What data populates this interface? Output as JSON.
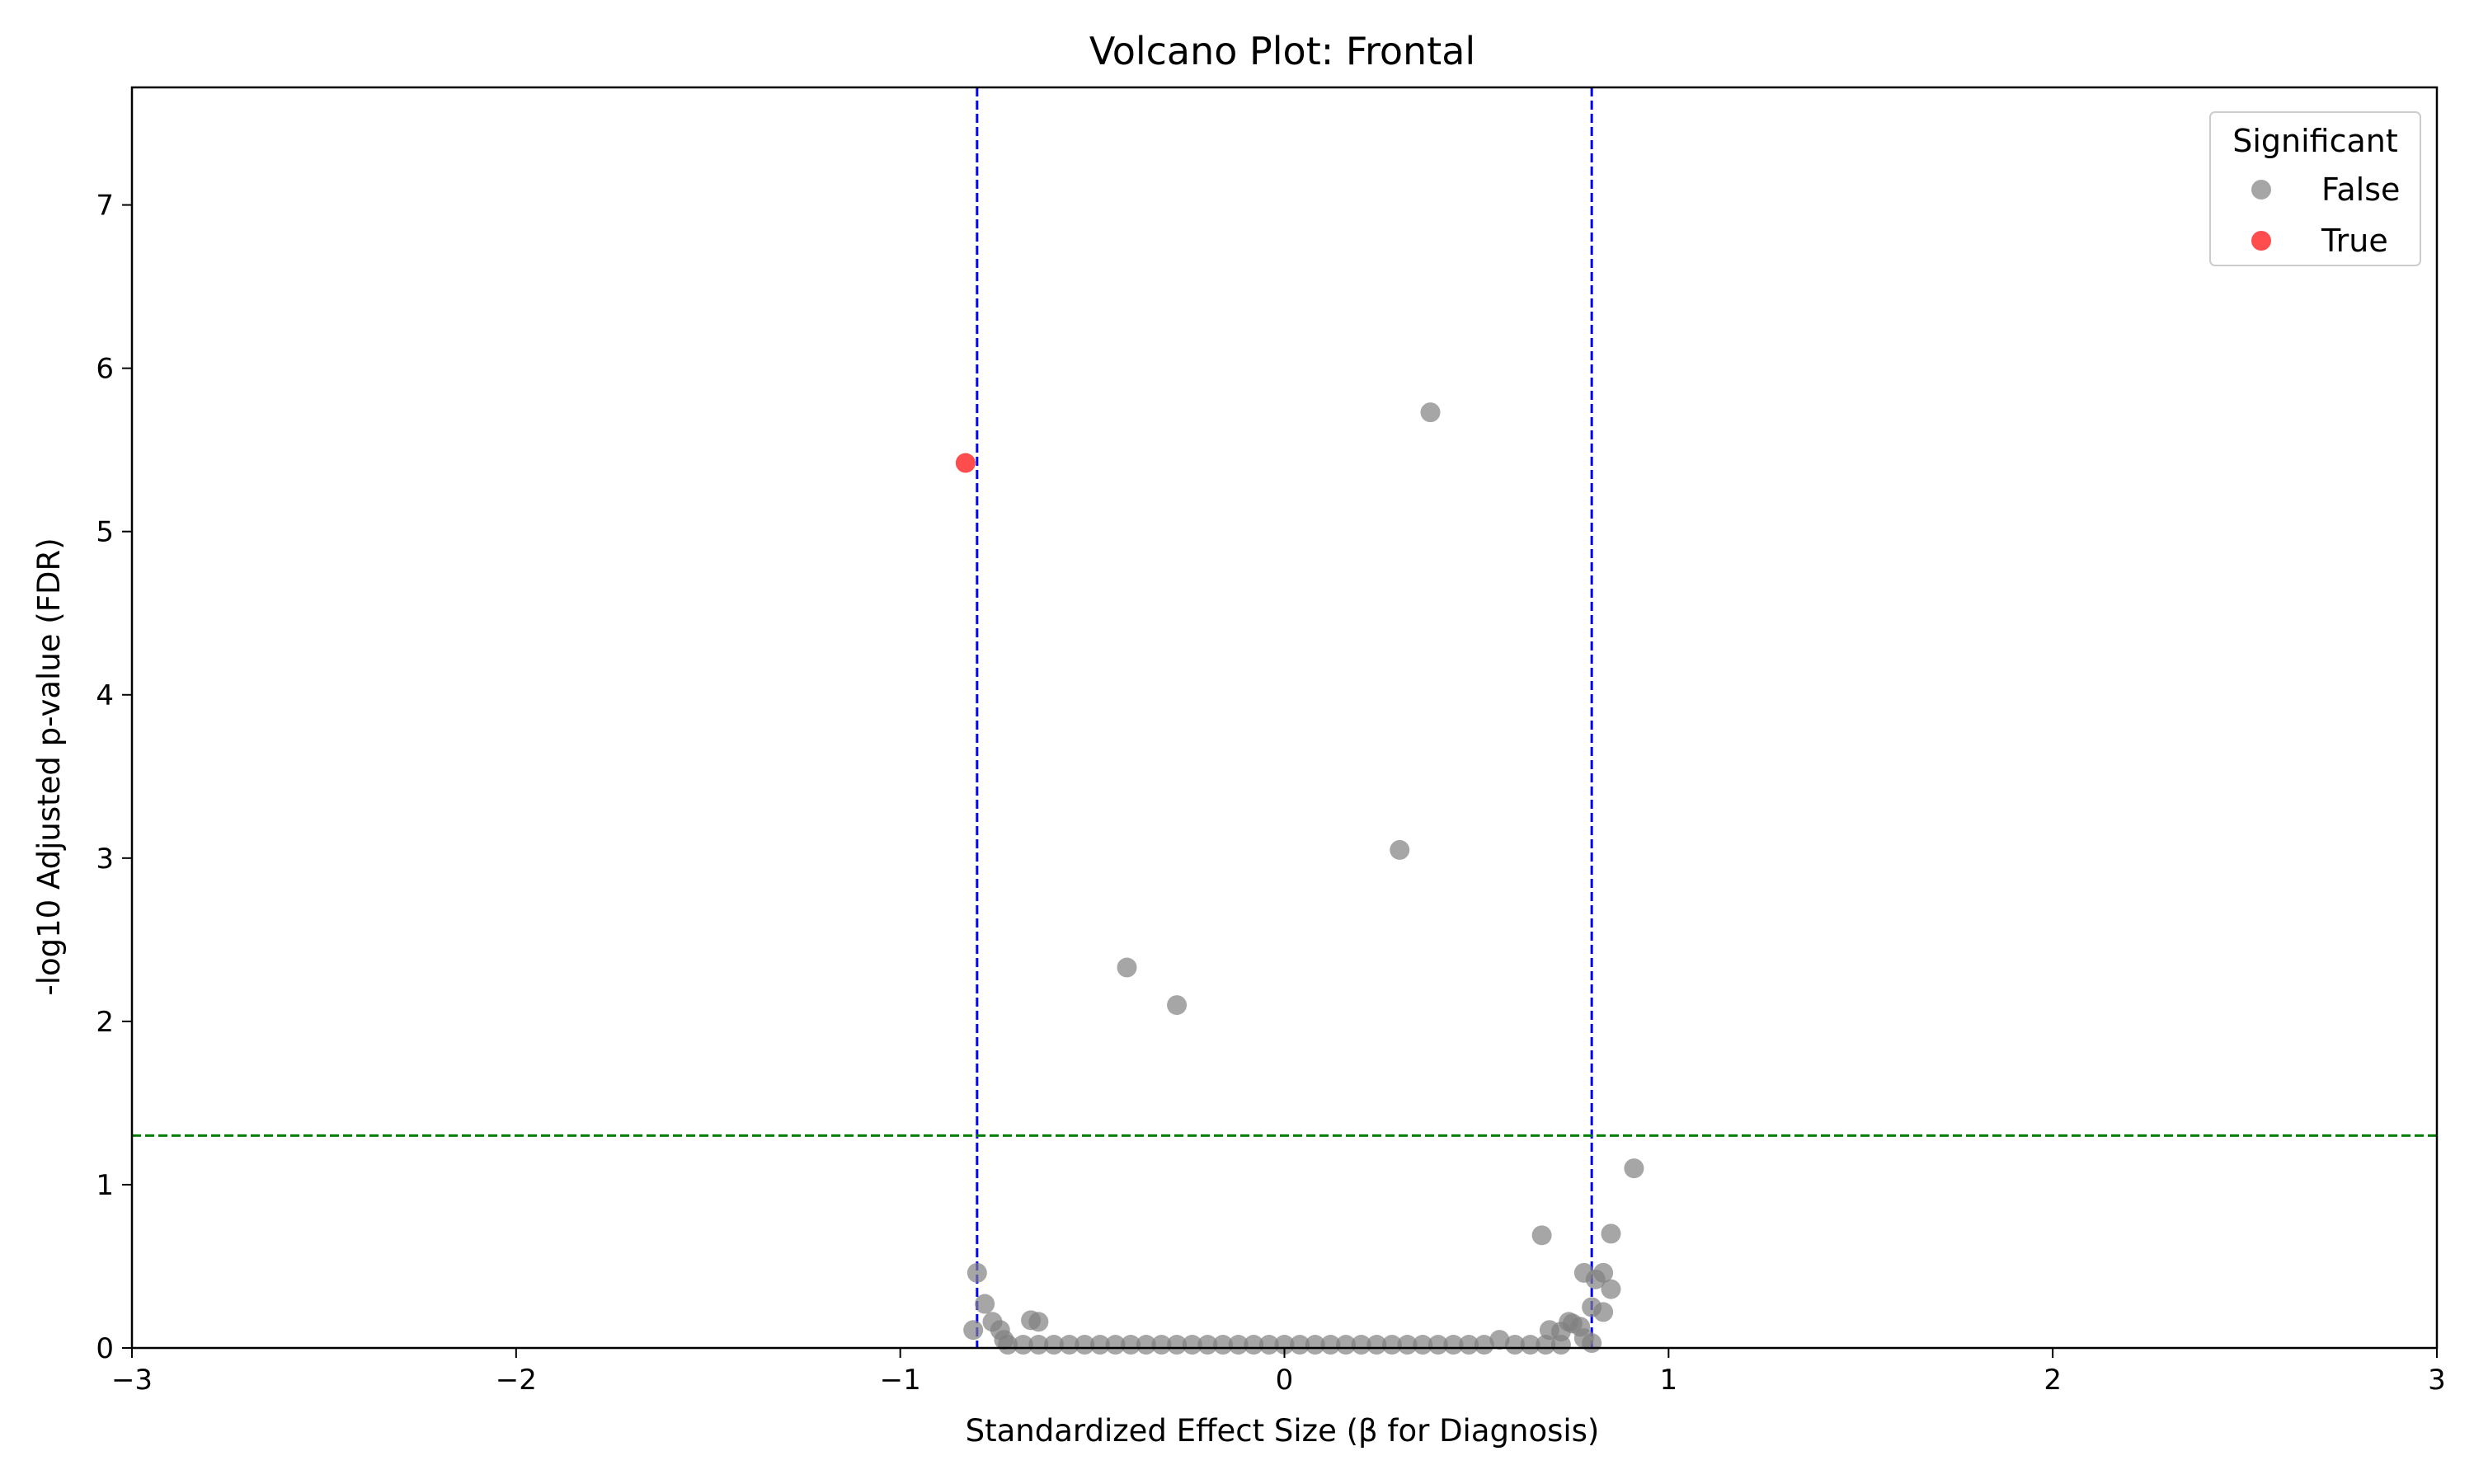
{
  "chart_data": {
    "type": "scatter",
    "title": "Volcano Plot: Frontal",
    "xlabel": "Standardized Effect Size (β for Diagnosis)",
    "ylabel": "-log10 Adjusted p-value (FDR)",
    "xlim": [
      -3,
      3
    ],
    "ylim": [
      0,
      7.72
    ],
    "xticks": [
      -3,
      -2,
      -1,
      0,
      1,
      2,
      3
    ],
    "xtick_labels": [
      "−3",
      "−2",
      "−1",
      "0",
      "1",
      "2",
      "3"
    ],
    "yticks": [
      0,
      1,
      2,
      3,
      4,
      5,
      6,
      7
    ],
    "ytick_labels": [
      "0",
      "1",
      "2",
      "3",
      "4",
      "5",
      "6",
      "7"
    ],
    "grid": false,
    "reference_lines": {
      "vertical": [
        -0.8,
        0.8
      ],
      "vertical_color": "#0000ff",
      "horizontal": [
        1.301
      ],
      "horizontal_color": "#008000"
    },
    "legend": {
      "title": "Significant",
      "placement": "top-right",
      "entries": [
        {
          "label": "False",
          "color": "#808080"
        },
        {
          "label": "True",
          "color": "#ff0000"
        }
      ]
    },
    "series": [
      {
        "name": "False",
        "color": "#808080",
        "points": [
          [
            0.38,
            5.73
          ],
          [
            0.3,
            3.05
          ],
          [
            -0.41,
            2.33
          ],
          [
            -0.28,
            2.1
          ],
          [
            0.91,
            1.1
          ],
          [
            0.67,
            0.69
          ],
          [
            0.85,
            0.7
          ],
          [
            -0.8,
            0.46
          ],
          [
            0.78,
            0.46
          ],
          [
            0.83,
            0.46
          ],
          [
            0.81,
            0.42
          ],
          [
            0.85,
            0.36
          ],
          [
            -0.78,
            0.27
          ],
          [
            0.8,
            0.25
          ],
          [
            0.83,
            0.22
          ],
          [
            -0.76,
            0.16
          ],
          [
            -0.66,
            0.17
          ],
          [
            -0.64,
            0.16
          ],
          [
            0.74,
            0.16
          ],
          [
            0.75,
            0.15
          ],
          [
            0.77,
            0.13
          ],
          [
            -0.81,
            0.11
          ],
          [
            -0.74,
            0.11
          ],
          [
            0.69,
            0.11
          ],
          [
            0.72,
            0.1
          ],
          [
            -0.73,
            0.05
          ],
          [
            0.56,
            0.05
          ],
          [
            0.78,
            0.06
          ],
          [
            0.8,
            0.03
          ],
          [
            -0.72,
            0.02
          ],
          [
            -0.68,
            0.02
          ],
          [
            -0.64,
            0.02
          ],
          [
            -0.6,
            0.02
          ],
          [
            -0.56,
            0.02
          ],
          [
            -0.52,
            0.02
          ],
          [
            -0.48,
            0.02
          ],
          [
            -0.44,
            0.02
          ],
          [
            -0.4,
            0.02
          ],
          [
            -0.36,
            0.02
          ],
          [
            -0.32,
            0.02
          ],
          [
            -0.28,
            0.02
          ],
          [
            -0.24,
            0.02
          ],
          [
            -0.2,
            0.02
          ],
          [
            -0.16,
            0.02
          ],
          [
            -0.12,
            0.02
          ],
          [
            -0.08,
            0.02
          ],
          [
            -0.04,
            0.02
          ],
          [
            0.0,
            0.02
          ],
          [
            0.04,
            0.02
          ],
          [
            0.08,
            0.02
          ],
          [
            0.12,
            0.02
          ],
          [
            0.16,
            0.02
          ],
          [
            0.2,
            0.02
          ],
          [
            0.24,
            0.02
          ],
          [
            0.28,
            0.02
          ],
          [
            0.32,
            0.02
          ],
          [
            0.36,
            0.02
          ],
          [
            0.4,
            0.02
          ],
          [
            0.44,
            0.02
          ],
          [
            0.48,
            0.02
          ],
          [
            0.52,
            0.02
          ],
          [
            0.6,
            0.02
          ],
          [
            0.64,
            0.02
          ],
          [
            0.68,
            0.02
          ],
          [
            0.72,
            0.02
          ]
        ]
      },
      {
        "name": "True",
        "color": "#ff0000",
        "points": [
          [
            -0.83,
            5.42
          ]
        ]
      }
    ]
  }
}
